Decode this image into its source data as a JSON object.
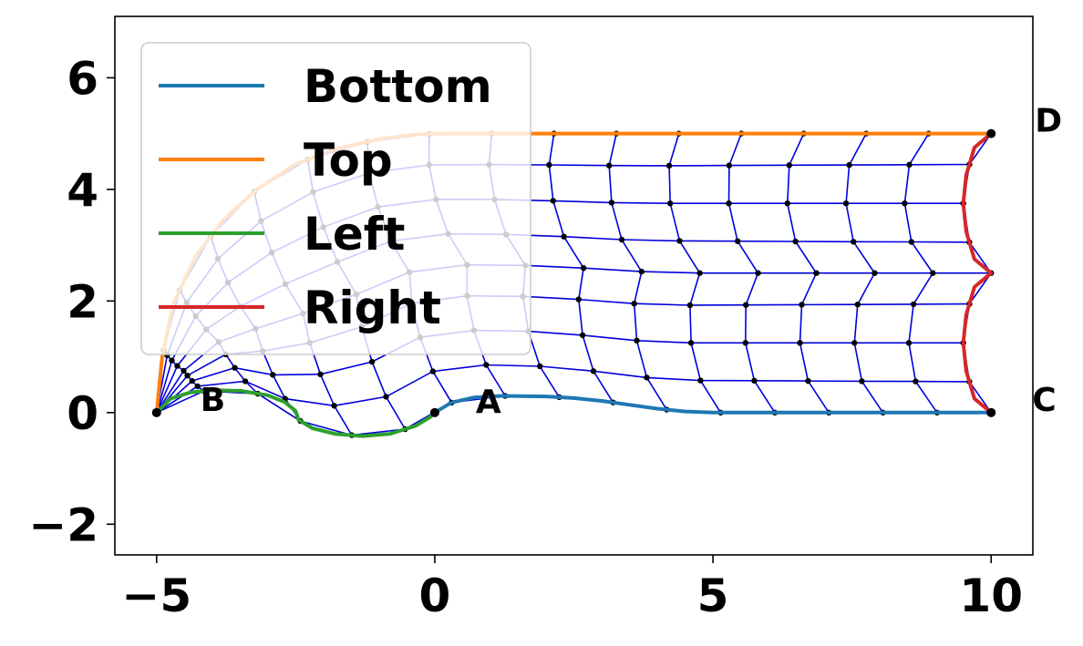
{
  "chart_data": {
    "type": "line",
    "title": "",
    "xlabel": "",
    "ylabel": "",
    "xlim": [
      -5.75,
      10.75
    ],
    "ylim": [
      -2.55,
      7.1
    ],
    "xticks": [
      -5,
      0,
      5,
      10
    ],
    "yticks": [
      -2,
      0,
      2,
      4,
      6
    ],
    "xtick_labels": [
      "−5",
      "0",
      "5",
      "10"
    ],
    "ytick_labels": [
      "−2",
      "0",
      "2",
      "4",
      "6"
    ],
    "grid": false,
    "legend_position": "upper left",
    "series": [
      {
        "name": "Bottom",
        "color": "#1f77b4",
        "x": [
          0,
          0.3,
          0.7,
          1.2,
          2.0,
          2.5,
          3.0,
          3.5,
          4.0,
          4.5,
          5.0,
          5.5,
          6.0,
          7.0,
          8.0,
          9.0,
          10.0
        ],
        "y": [
          0,
          0.18,
          0.27,
          0.3,
          0.29,
          0.26,
          0.21,
          0.14,
          0.07,
          0.02,
          0.0,
          0.0,
          0.0,
          0.0,
          0.0,
          0.0,
          0.0
        ]
      },
      {
        "name": "Top",
        "color": "#ff7f0e",
        "x": [
          -5.0,
          -4.9,
          -4.7,
          -4.3,
          -3.8,
          -3.2,
          -2.5,
          -1.8,
          -1.0,
          -0.4,
          0.0,
          1.0,
          2.0,
          4.0,
          6.0,
          8.0,
          10.0
        ],
        "y": [
          0.0,
          1.0,
          1.95,
          2.8,
          3.45,
          4.0,
          4.45,
          4.72,
          4.9,
          4.98,
          5.0,
          5.0,
          5.0,
          5.0,
          5.0,
          5.0,
          5.0
        ]
      },
      {
        "name": "Left",
        "color": "#2ca02c",
        "x": [
          -5.0,
          -4.75,
          -4.4,
          -4.0,
          -3.5,
          -3.0,
          -2.7,
          -2.5,
          -2.45,
          -2.2,
          -1.8,
          -1.3,
          -0.8,
          -0.35,
          -0.08,
          0.0
        ],
        "y": [
          0.0,
          0.25,
          0.36,
          0.4,
          0.39,
          0.31,
          0.19,
          0.03,
          -0.13,
          -0.28,
          -0.38,
          -0.42,
          -0.38,
          -0.24,
          -0.08,
          0.0
        ]
      },
      {
        "name": "Right",
        "color": "#d62728",
        "x": [
          10.0,
          9.7,
          9.55,
          9.5,
          9.55,
          9.7,
          10.0,
          9.7,
          9.55,
          9.5,
          9.55,
          9.7,
          10.0
        ],
        "y": [
          0.0,
          0.25,
          0.75,
          1.25,
          1.75,
          2.25,
          2.5,
          2.75,
          3.25,
          3.75,
          4.25,
          4.75,
          5.0
        ]
      }
    ],
    "mesh": {
      "color": "#0000dd",
      "node_color": "#000000",
      "rows": 9,
      "cols": 17
    },
    "corner_points": [
      {
        "label": "A",
        "x": 0,
        "y": 0
      },
      {
        "label": "B",
        "x": -5,
        "y": 0
      },
      {
        "label": "C",
        "x": 10,
        "y": 0
      },
      {
        "label": "D",
        "x": 10,
        "y": 5
      }
    ]
  }
}
